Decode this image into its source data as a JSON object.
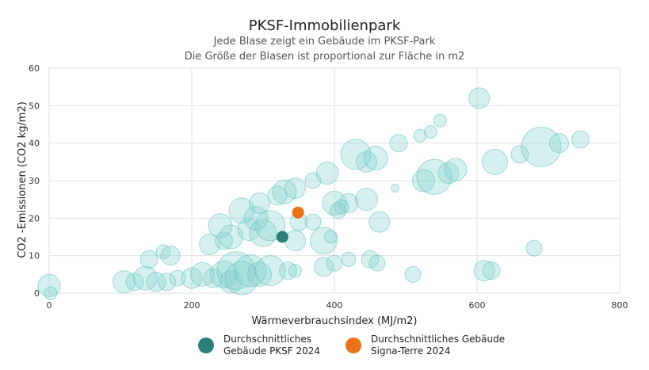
{
  "chart_data": {
    "type": "scatter",
    "title": "PKSF-Immobilienpark",
    "subtitle": "Jede Blase zeigt ein Gebäude im PKSF-Park",
    "subtitle2": "Die Größe der Blasen ist proportional zur Fläche in m2",
    "xlabel": "Wärmeverbrauchsindex (MJ/m2)",
    "ylabel": "CO2 -Emissionen (CO2 kg/m2)",
    "xlim": [
      0,
      800
    ],
    "ylim": [
      0,
      60
    ],
    "xticks": [
      0,
      200,
      400,
      600,
      800
    ],
    "yticks": [
      0,
      10,
      20,
      30,
      40,
      50,
      60
    ],
    "grid": true,
    "legend_position": "bottom",
    "colors": {
      "bubble": "#7fd1cc",
      "bubble_edge": "#5fc0bb",
      "pksf_avg": "#2b7f79",
      "signa_terre": "#e8711a"
    },
    "series": [
      {
        "name": "Gebäude",
        "points": [
          {
            "x": 0,
            "y": 2,
            "size": 28
          },
          {
            "x": 2,
            "y": 0,
            "size": 16
          },
          {
            "x": 105,
            "y": 3,
            "size": 28
          },
          {
            "x": 120,
            "y": 3,
            "size": 22
          },
          {
            "x": 135,
            "y": 4,
            "size": 30
          },
          {
            "x": 150,
            "y": 3,
            "size": 24
          },
          {
            "x": 165,
            "y": 3,
            "size": 22
          },
          {
            "x": 180,
            "y": 4,
            "size": 20
          },
          {
            "x": 200,
            "y": 4,
            "size": 26
          },
          {
            "x": 215,
            "y": 5,
            "size": 30
          },
          {
            "x": 230,
            "y": 4,
            "size": 24
          },
          {
            "x": 245,
            "y": 5,
            "size": 34
          },
          {
            "x": 255,
            "y": 3,
            "size": 28
          },
          {
            "x": 262,
            "y": 6,
            "size": 48
          },
          {
            "x": 270,
            "y": 4,
            "size": 42
          },
          {
            "x": 282,
            "y": 6,
            "size": 40
          },
          {
            "x": 295,
            "y": 5,
            "size": 30
          },
          {
            "x": 310,
            "y": 6,
            "size": 38
          },
          {
            "x": 335,
            "y": 6,
            "size": 22
          },
          {
            "x": 345,
            "y": 6,
            "size": 16
          },
          {
            "x": 140,
            "y": 9,
            "size": 22
          },
          {
            "x": 160,
            "y": 11,
            "size": 18
          },
          {
            "x": 170,
            "y": 10,
            "size": 24
          },
          {
            "x": 225,
            "y": 13,
            "size": 26
          },
          {
            "x": 245,
            "y": 14,
            "size": 22
          },
          {
            "x": 255,
            "y": 15,
            "size": 30
          },
          {
            "x": 240,
            "y": 18,
            "size": 30
          },
          {
            "x": 280,
            "y": 17,
            "size": 28
          },
          {
            "x": 300,
            "y": 16,
            "size": 34
          },
          {
            "x": 310,
            "y": 18,
            "size": 38
          },
          {
            "x": 290,
            "y": 20,
            "size": 30
          },
          {
            "x": 270,
            "y": 22,
            "size": 32
          },
          {
            "x": 295,
            "y": 24,
            "size": 26
          },
          {
            "x": 320,
            "y": 26,
            "size": 24
          },
          {
            "x": 330,
            "y": 27,
            "size": 30
          },
          {
            "x": 345,
            "y": 28,
            "size": 26
          },
          {
            "x": 345,
            "y": 14,
            "size": 26
          },
          {
            "x": 350,
            "y": 19,
            "size": 22
          },
          {
            "x": 370,
            "y": 19,
            "size": 20
          },
          {
            "x": 385,
            "y": 14,
            "size": 34
          },
          {
            "x": 395,
            "y": 15,
            "size": 16
          },
          {
            "x": 370,
            "y": 30,
            "size": 20
          },
          {
            "x": 390,
            "y": 32,
            "size": 28
          },
          {
            "x": 400,
            "y": 24,
            "size": 30
          },
          {
            "x": 405,
            "y": 22,
            "size": 20
          },
          {
            "x": 420,
            "y": 24,
            "size": 24
          },
          {
            "x": 445,
            "y": 25,
            "size": 28
          },
          {
            "x": 430,
            "y": 37,
            "size": 38
          },
          {
            "x": 445,
            "y": 35,
            "size": 26
          },
          {
            "x": 458,
            "y": 36,
            "size": 30
          },
          {
            "x": 410,
            "y": 23,
            "size": 18
          },
          {
            "x": 385,
            "y": 7,
            "size": 24
          },
          {
            "x": 400,
            "y": 8,
            "size": 20
          },
          {
            "x": 420,
            "y": 9,
            "size": 18
          },
          {
            "x": 450,
            "y": 9,
            "size": 22
          },
          {
            "x": 460,
            "y": 8,
            "size": 20
          },
          {
            "x": 463,
            "y": 19,
            "size": 26
          },
          {
            "x": 485,
            "y": 28,
            "size": 10
          },
          {
            "x": 490,
            "y": 40,
            "size": 22
          },
          {
            "x": 510,
            "y": 5,
            "size": 20
          },
          {
            "x": 520,
            "y": 42,
            "size": 16
          },
          {
            "x": 535,
            "y": 43,
            "size": 16
          },
          {
            "x": 548,
            "y": 46,
            "size": 16
          },
          {
            "x": 525,
            "y": 30,
            "size": 28
          },
          {
            "x": 540,
            "y": 31,
            "size": 44
          },
          {
            "x": 560,
            "y": 32,
            "size": 26
          },
          {
            "x": 570,
            "y": 33,
            "size": 28
          },
          {
            "x": 603,
            "y": 52,
            "size": 26
          },
          {
            "x": 610,
            "y": 6,
            "size": 26
          },
          {
            "x": 620,
            "y": 6,
            "size": 22
          },
          {
            "x": 625,
            "y": 35,
            "size": 32
          },
          {
            "x": 660,
            "y": 37,
            "size": 22
          },
          {
            "x": 680,
            "y": 12,
            "size": 20
          },
          {
            "x": 690,
            "y": 39,
            "size": 50
          },
          {
            "x": 715,
            "y": 40,
            "size": 24
          },
          {
            "x": 745,
            "y": 41,
            "size": 22
          }
        ]
      },
      {
        "name": "Durchschnittliches Gebäude PKSF 2024",
        "points": [
          {
            "x": 327,
            "y": 15,
            "size": 15
          }
        ]
      },
      {
        "name": "Durchschnittliches Gebäude Signa-Terre 2024",
        "points": [
          {
            "x": 349,
            "y": 21.5,
            "size": 15
          }
        ]
      }
    ]
  },
  "legend": {
    "pksf_line1": "Durchschnittliches",
    "pksf_line2": "Gebäude PKSF 2024",
    "signa_line1": "Durchschnittliches Gebäude",
    "signa_line2": "Signa-Terre 2024"
  }
}
